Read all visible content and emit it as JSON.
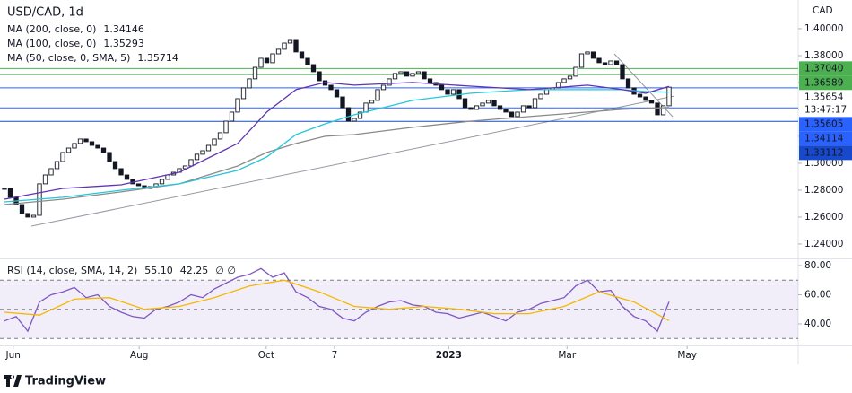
{
  "chart_data": [
    {
      "type": "candlestick",
      "title": "USD/CAD, 1d",
      "currency": "CAD",
      "xlim": [
        -0.77,
        136.15
      ],
      "xticks": [
        {
          "value": 1.5,
          "label": "Jun"
        },
        {
          "value": 23.1,
          "label": "Aug"
        },
        {
          "value": 44.9,
          "label": "Oct"
        },
        {
          "value": 56.6,
          "label": "7"
        },
        {
          "value": 76.2,
          "label": "2023"
        },
        {
          "value": 96.5,
          "label": "Mar"
        },
        {
          "value": 117.1,
          "label": "May"
        }
      ],
      "ylim": [
        1.2293,
        1.4213
      ],
      "yticks": [
        {
          "value": 1.24,
          "label": "1.24000"
        },
        {
          "value": 1.26,
          "label": "1.26000"
        },
        {
          "value": 1.28,
          "label": "1.28000"
        },
        {
          "value": 1.3,
          "label": "1.30000"
        },
        {
          "value": 1.32,
          "label": "1.32000"
        },
        {
          "value": 1.34,
          "label": "1.34000"
        },
        {
          "value": 1.36,
          "label": "1.36000"
        },
        {
          "value": 1.38,
          "label": "1.38000"
        },
        {
          "value": 1.4,
          "label": "1.40000"
        }
      ],
      "series": [
        {
          "color": "#131722",
          "values": [
            1.2813,
            1.2747,
            1.2693,
            1.2627,
            1.26,
            1.2613,
            1.2847,
            1.2913,
            1.296,
            1.3013,
            1.308,
            1.3113,
            1.3147,
            1.318,
            1.316,
            1.3133,
            1.3113,
            1.308,
            1.3013,
            1.296,
            1.2913,
            1.288,
            1.2847,
            1.2833,
            1.2813,
            1.2827,
            1.2847,
            1.288,
            1.2913,
            1.2933,
            1.296,
            1.298,
            1.3027,
            1.3067,
            1.3093,
            1.3133,
            1.318,
            1.3227,
            1.3313,
            1.338,
            1.348,
            1.356,
            1.3627,
            1.3713,
            1.378,
            1.3747,
            1.3813,
            1.3847,
            1.3893,
            1.3913,
            1.3827,
            1.378,
            1.3733,
            1.368,
            1.3613,
            1.358,
            1.3547,
            1.3493,
            1.3413,
            1.3313,
            1.3333,
            1.338,
            1.3447,
            1.3467,
            1.3547,
            1.358,
            1.3627,
            1.3667,
            1.368,
            1.3647,
            1.3667,
            1.368,
            1.3627,
            1.36,
            1.358,
            1.3547,
            1.3513,
            1.3547,
            1.348,
            1.3413,
            1.34,
            1.3427,
            1.3447,
            1.3467,
            1.3427,
            1.34,
            1.338,
            1.3347,
            1.338,
            1.3427,
            1.3413,
            1.348,
            1.3513,
            1.3547,
            1.356,
            1.36,
            1.3627,
            1.3647,
            1.3713,
            1.3813,
            1.3827,
            1.378,
            1.3747,
            1.3733,
            1.376,
            1.3733,
            1.3627,
            1.356,
            1.3513,
            1.3493,
            1.3467,
            1.3447,
            1.336,
            1.3427,
            1.35654
          ]
        },
        {
          "name": "MA (200, close, 0)",
          "color": "#8a8a8a",
          "x": [
            0,
            10,
            20,
            30,
            40,
            45,
            50,
            55,
            60,
            70,
            80,
            90,
            100,
            106,
            110,
            114
          ],
          "values": [
            1.2693,
            1.2733,
            1.2787,
            1.2847,
            1.298,
            1.308,
            1.3147,
            1.32,
            1.3213,
            1.3267,
            1.3313,
            1.3347,
            1.338,
            1.34,
            1.3407,
            1.34146
          ]
        },
        {
          "name": "MA (100, close, 0)",
          "color": "#26c6da",
          "x": [
            0,
            10,
            20,
            30,
            40,
            45,
            50,
            55,
            60,
            70,
            80,
            90,
            100,
            106,
            110,
            114
          ],
          "values": [
            1.2713,
            1.2747,
            1.28,
            1.2847,
            1.2947,
            1.3047,
            1.3213,
            1.3293,
            1.336,
            1.3467,
            1.352,
            1.3547,
            1.3547,
            1.3547,
            1.3533,
            1.35293
          ]
        },
        {
          "name": "MA (50, close, 0, SMA, 5)",
          "color": "#5e35b1",
          "x": [
            0,
            10,
            20,
            30,
            40,
            45,
            50,
            55,
            60,
            70,
            80,
            90,
            100,
            106,
            110,
            114
          ],
          "values": [
            1.2733,
            1.2813,
            1.284,
            1.2933,
            1.3147,
            1.338,
            1.3547,
            1.36,
            1.358,
            1.36,
            1.3573,
            1.3547,
            1.358,
            1.3547,
            1.352,
            1.35714
          ]
        }
      ],
      "price_labels": [
        {
          "value": 1.3704,
          "label": "1.37040",
          "color": "#4caf50"
        },
        {
          "value": 1.36589,
          "label": "1.36589",
          "color": "#4caf50"
        },
        {
          "value": 1.35654,
          "label": "1.35654"
        },
        {
          "value": 1.35605,
          "label": "1.35605",
          "color": "#2962ff"
        },
        {
          "value": 1.34114,
          "label": "1.34114",
          "color": "#2962ff"
        },
        {
          "value": 1.33112,
          "label": "1.33112",
          "color": "#1848cc"
        }
      ],
      "countdown": "13:47:17",
      "footer": "TradingView"
    },
    {
      "type": "line",
      "title": "RSI (14, close, SMA, 14, 2)",
      "ylim": [
        25.2,
        83.7
      ],
      "yticks": [
        {
          "value": 40,
          "label": "40.00"
        },
        {
          "value": 60,
          "label": "60.00"
        },
        {
          "value": 80,
          "label": "80.00"
        }
      ],
      "bands": [
        70,
        50,
        30
      ],
      "series": [
        {
          "color": "#7e57c2",
          "x": [
            0,
            2,
            4,
            6,
            8,
            10,
            12,
            14,
            16,
            18,
            20,
            22,
            24,
            26,
            28,
            30,
            32,
            34,
            36,
            38,
            40,
            42,
            44,
            46,
            48,
            50,
            52,
            54,
            56,
            58,
            60,
            62,
            64,
            66,
            68,
            70,
            72,
            74,
            76,
            78,
            80,
            82,
            84,
            86,
            88,
            90,
            92,
            94,
            96,
            98,
            100,
            102,
            104,
            106,
            108,
            110,
            112,
            114
          ],
          "values": [
            42,
            45,
            35,
            55,
            60,
            62,
            65,
            58,
            60,
            52,
            48,
            45,
            44,
            50,
            52,
            55,
            60,
            58,
            64,
            68,
            72,
            74,
            78,
            72,
            75,
            62,
            58,
            52,
            50,
            44,
            42,
            48,
            52,
            55,
            56,
            53,
            52,
            48,
            47,
            44,
            46,
            48,
            45,
            42,
            48,
            50,
            54,
            56,
            58,
            66,
            70,
            62,
            63,
            52,
            45,
            42,
            35,
            55.1
          ]
        },
        {
          "color": "#f5b800",
          "x": [
            0,
            6,
            12,
            18,
            24,
            30,
            36,
            42,
            48,
            54,
            60,
            66,
            72,
            78,
            84,
            90,
            96,
            102,
            108,
            114
          ],
          "values": [
            48,
            46,
            57,
            58,
            50,
            52,
            58,
            66,
            70,
            62,
            52,
            50,
            52,
            50,
            47,
            47,
            52,
            62,
            55,
            42.25
          ]
        }
      ],
      "readout": [
        {
          "value": 55.1,
          "label": "55.10"
        },
        42.25
      ],
      "symbols": "∅ ∅"
    }
  ]
}
